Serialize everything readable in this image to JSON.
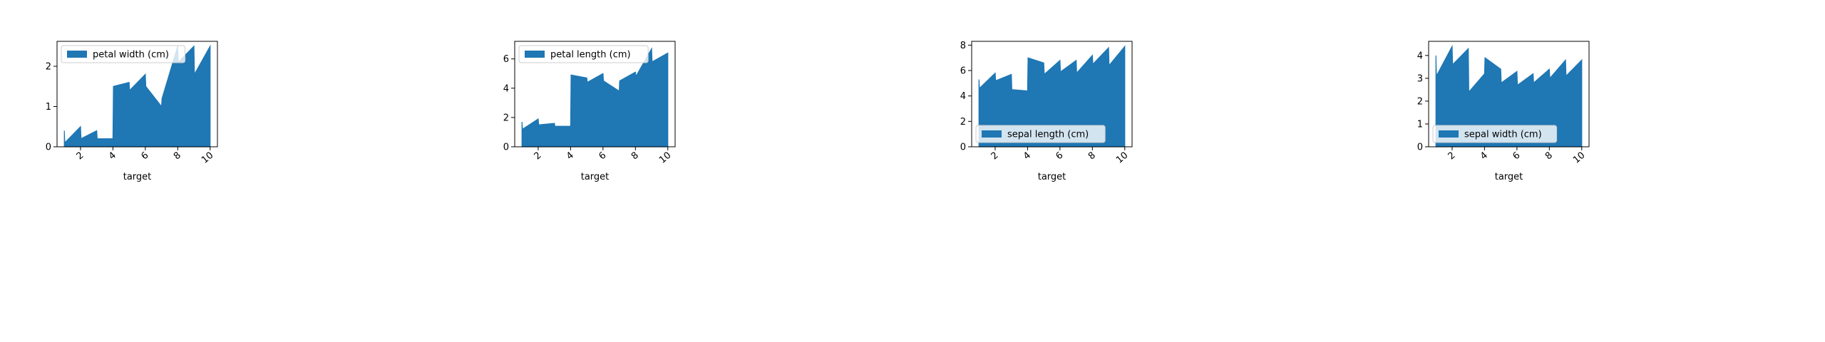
{
  "chart_data": [
    {
      "type": "area",
      "xlabel": "target",
      "x": [
        1,
        1.03,
        2,
        2.03,
        3,
        3.03,
        4,
        4.03,
        5,
        5.03,
        6,
        6.03,
        7,
        7.03,
        8,
        8.03,
        9,
        9.03,
        10
      ],
      "series": [
        {
          "name": "petal width (cm)",
          "values": [
            0.4,
            0.1,
            0.5,
            0.2,
            0.4,
            0.2,
            0.2,
            1.5,
            1.6,
            1.4,
            1.8,
            1.5,
            1.0,
            1.2,
            2.5,
            2.1,
            2.5,
            1.8,
            2.5
          ]
        }
      ],
      "xticks": [
        "2",
        "4",
        "6",
        "8",
        "10"
      ],
      "yticks": [
        "0",
        "1",
        "2"
      ],
      "xlim": [
        0.55,
        10.45
      ],
      "ylim": [
        0,
        2.62
      ],
      "legend": "upper left",
      "color": "#1f77b4"
    },
    {
      "type": "area",
      "xlabel": "target",
      "x": [
        1,
        1.03,
        2,
        2.03,
        3,
        3.03,
        4,
        4.03,
        5,
        5.03,
        6,
        6.03,
        7,
        7.03,
        8,
        8.03,
        9,
        9.03,
        10
      ],
      "series": [
        {
          "name": "petal length (cm)",
          "values": [
            1.7,
            1.2,
            1.9,
            1.5,
            1.6,
            1.4,
            1.4,
            4.9,
            4.7,
            4.4,
            5.0,
            4.5,
            3.8,
            4.5,
            5.1,
            4.8,
            6.7,
            5.8,
            6.4
          ]
        }
      ],
      "xticks": [
        "2",
        "4",
        "6",
        "8",
        "10"
      ],
      "yticks": [
        "0",
        "2",
        "4",
        "6"
      ],
      "xlim": [
        0.55,
        10.45
      ],
      "ylim": [
        0,
        7.2
      ],
      "legend": "upper left",
      "color": "#1f77b4"
    },
    {
      "type": "area",
      "xlabel": "target",
      "x": [
        1,
        1.03,
        2,
        2.03,
        3,
        3.03,
        4,
        4.03,
        5,
        5.03,
        6,
        6.03,
        7,
        7.03,
        8,
        8.03,
        9,
        9.03,
        10
      ],
      "series": [
        {
          "name": "sepal length (cm)",
          "values": [
            5.3,
            4.6,
            5.8,
            5.2,
            5.7,
            4.5,
            4.4,
            7.0,
            6.6,
            5.7,
            6.8,
            5.9,
            6.8,
            5.8,
            7.2,
            6.5,
            7.8,
            6.4,
            7.9
          ]
        }
      ],
      "xticks": [
        "2",
        "4",
        "6",
        "8",
        "10"
      ],
      "yticks": [
        "0",
        "2",
        "4",
        "6",
        "8"
      ],
      "xlim": [
        0.55,
        10.45
      ],
      "ylim": [
        0,
        8.3
      ],
      "legend": "lower left",
      "color": "#1f77b4"
    },
    {
      "type": "area",
      "xlabel": "target",
      "x": [
        1,
        1.03,
        2,
        2.03,
        3,
        3.03,
        4,
        4.03,
        5,
        5.03,
        6,
        6.03,
        7,
        7.03,
        8,
        8.03,
        9,
        9.03,
        10
      ],
      "series": [
        {
          "name": "sepal width (cm)",
          "values": [
            4.0,
            3.1,
            4.4,
            3.6,
            4.3,
            2.4,
            3.2,
            3.9,
            3.4,
            2.8,
            3.3,
            2.7,
            3.2,
            2.8,
            3.4,
            3.0,
            3.8,
            3.1,
            3.8
          ]
        }
      ],
      "xticks": [
        "2",
        "4",
        "6",
        "8",
        "10"
      ],
      "yticks": [
        "0",
        "1",
        "2",
        "3",
        "4"
      ],
      "xlim": [
        0.55,
        10.45
      ],
      "ylim": [
        0,
        4.62
      ],
      "legend": "lower left",
      "color": "#1f77b4"
    }
  ]
}
